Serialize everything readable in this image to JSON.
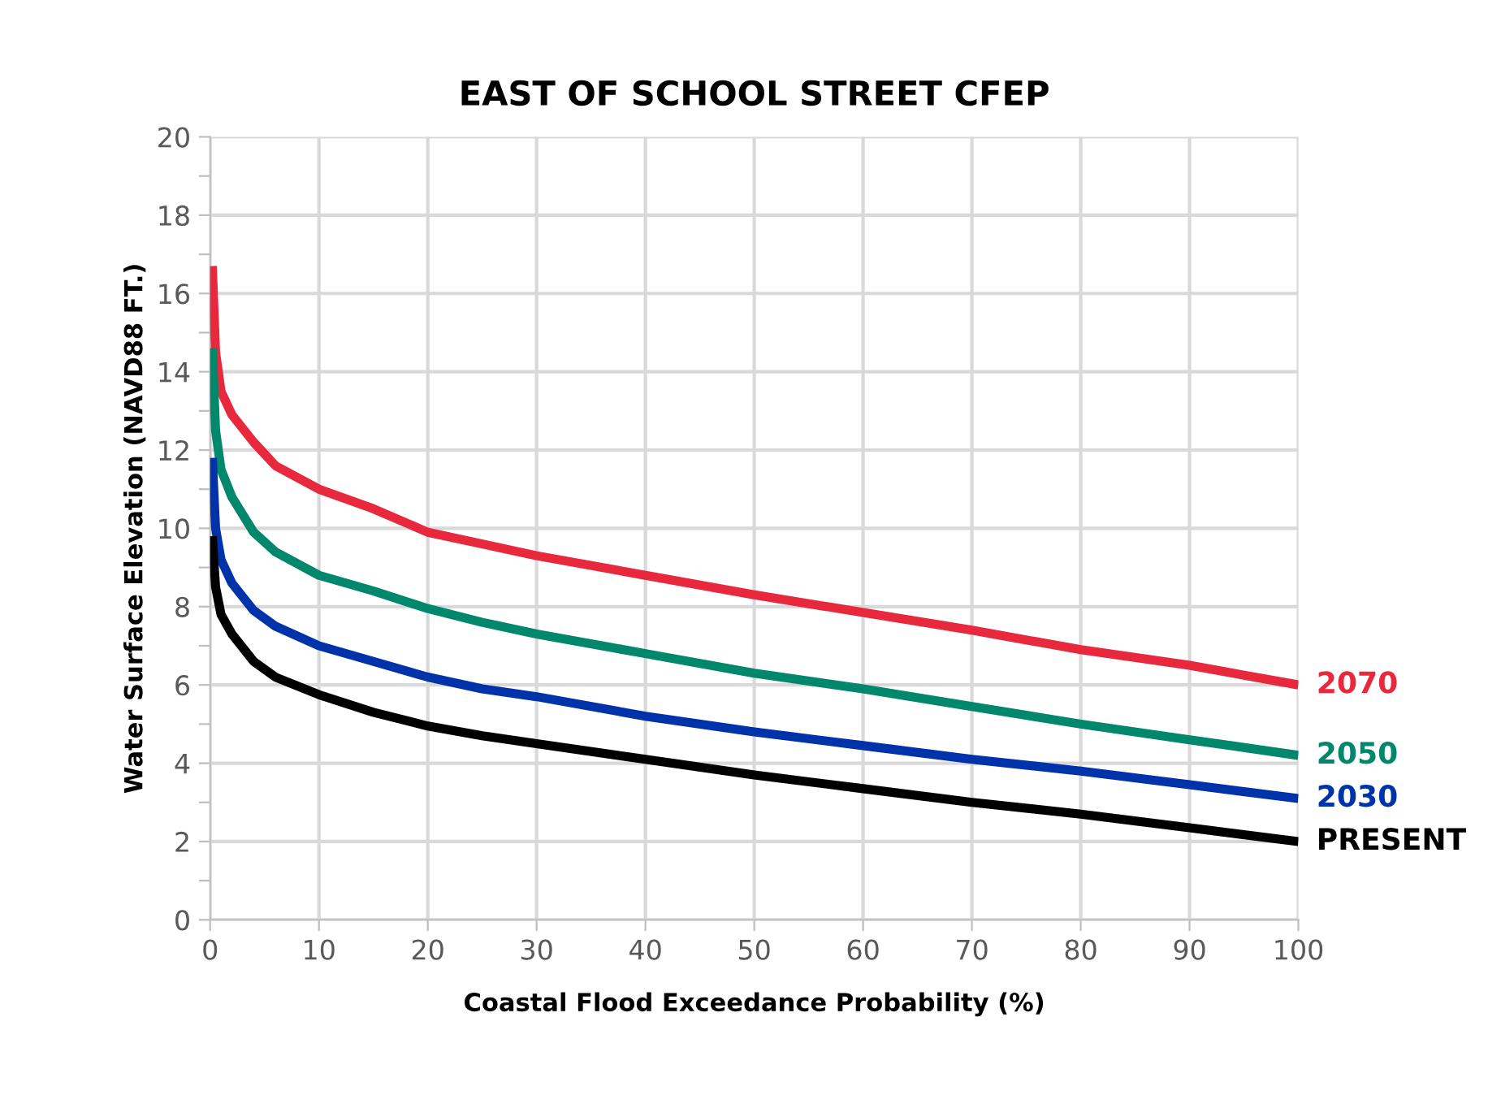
{
  "chart_data": {
    "type": "line",
    "title": "EAST OF SCHOOL STREET CFEP",
    "xlabel": "Coastal Flood Exceedance Probability (%)",
    "ylabel": "Water Surface Elevation (NAVD88 FT.)",
    "x": [
      0.2,
      0.5,
      1,
      2,
      4,
      6,
      10,
      15,
      20,
      25,
      30,
      40,
      50,
      60,
      70,
      80,
      90,
      100
    ],
    "series": [
      {
        "name": "2070",
        "color": "#e8283c",
        "values": [
          16.7,
          14.5,
          13.5,
          12.9,
          12.2,
          11.6,
          11.0,
          10.5,
          9.9,
          9.6,
          9.3,
          8.8,
          8.3,
          7.85,
          7.4,
          6.9,
          6.5,
          6.0
        ]
      },
      {
        "name": "2050",
        "color": "#00876c",
        "values": [
          14.6,
          12.5,
          11.5,
          10.8,
          9.9,
          9.4,
          8.8,
          8.4,
          7.95,
          7.6,
          7.3,
          6.8,
          6.3,
          5.9,
          5.45,
          5.0,
          4.6,
          4.2
        ]
      },
      {
        "name": "2030",
        "color": "#0033aa",
        "values": [
          11.8,
          10.0,
          9.2,
          8.6,
          7.9,
          7.5,
          7.0,
          6.6,
          6.2,
          5.9,
          5.7,
          5.2,
          4.8,
          4.45,
          4.1,
          3.8,
          3.45,
          3.1
        ]
      },
      {
        "name": "PRESENT",
        "color": "#000000",
        "values": [
          9.8,
          8.5,
          7.8,
          7.3,
          6.6,
          6.2,
          5.75,
          5.3,
          4.95,
          4.7,
          4.5,
          4.1,
          3.7,
          3.35,
          3.0,
          2.7,
          2.35,
          2.0
        ]
      }
    ],
    "xlim": [
      0,
      100
    ],
    "xticks": [
      0,
      10,
      20,
      30,
      40,
      50,
      60,
      70,
      80,
      90,
      100
    ],
    "ylim": [
      0,
      20
    ],
    "yticks": [
      0,
      {
        "value": 1,
        "label": null
      },
      2,
      {
        "value": 3,
        "label": null
      },
      4,
      {
        "value": 5,
        "label": null
      },
      6,
      {
        "value": 7,
        "label": null
      },
      8,
      {
        "value": 9,
        "label": null
      },
      10,
      {
        "value": 11,
        "label": null
      },
      12,
      {
        "value": 13,
        "label": null
      },
      14,
      {
        "value": 15,
        "label": null
      },
      16,
      {
        "value": 17,
        "label": null
      },
      18,
      {
        "value": 19,
        "label": null
      },
      20
    ],
    "grid": true,
    "legend": false,
    "marker": "none",
    "line_style": "solid"
  }
}
